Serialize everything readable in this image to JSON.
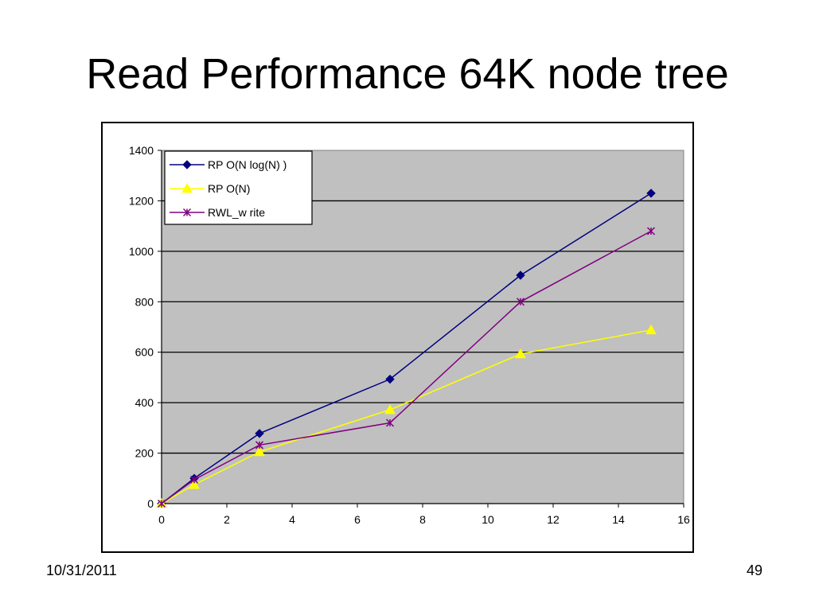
{
  "slide": {
    "title": "Read Performance 64K node tree",
    "footer_date": "10/31/2011",
    "page_number": "49"
  },
  "chart_data": {
    "type": "line",
    "title": "",
    "xlabel": "",
    "ylabel": "",
    "xlim": [
      0,
      16
    ],
    "ylim": [
      0,
      1400
    ],
    "x_ticks": [
      0,
      2,
      4,
      6,
      8,
      10,
      12,
      14,
      16
    ],
    "y_ticks": [
      0,
      200,
      400,
      600,
      800,
      1000,
      1200,
      1400
    ],
    "grid": "horizontal",
    "plot_background": "#c0c0c0",
    "legend_position": "top-left",
    "series": [
      {
        "name": "RP O(N log(N) )",
        "color": "#000080",
        "marker": "diamond",
        "x": [
          0,
          1,
          3,
          7,
          11,
          15
        ],
        "y": [
          0,
          100,
          278,
          493,
          905,
          1230
        ]
      },
      {
        "name": "RP O(N)",
        "color": "#ffff00",
        "marker": "triangle",
        "x": [
          0,
          1,
          3,
          7,
          11,
          15
        ],
        "y": [
          0,
          75,
          205,
          372,
          593,
          688
        ]
      },
      {
        "name": "RWL_w rite",
        "color": "#800080",
        "marker": "asterisk",
        "x": [
          0,
          1,
          3,
          7,
          11,
          15
        ],
        "y": [
          0,
          95,
          232,
          320,
          800,
          1080
        ]
      }
    ]
  }
}
